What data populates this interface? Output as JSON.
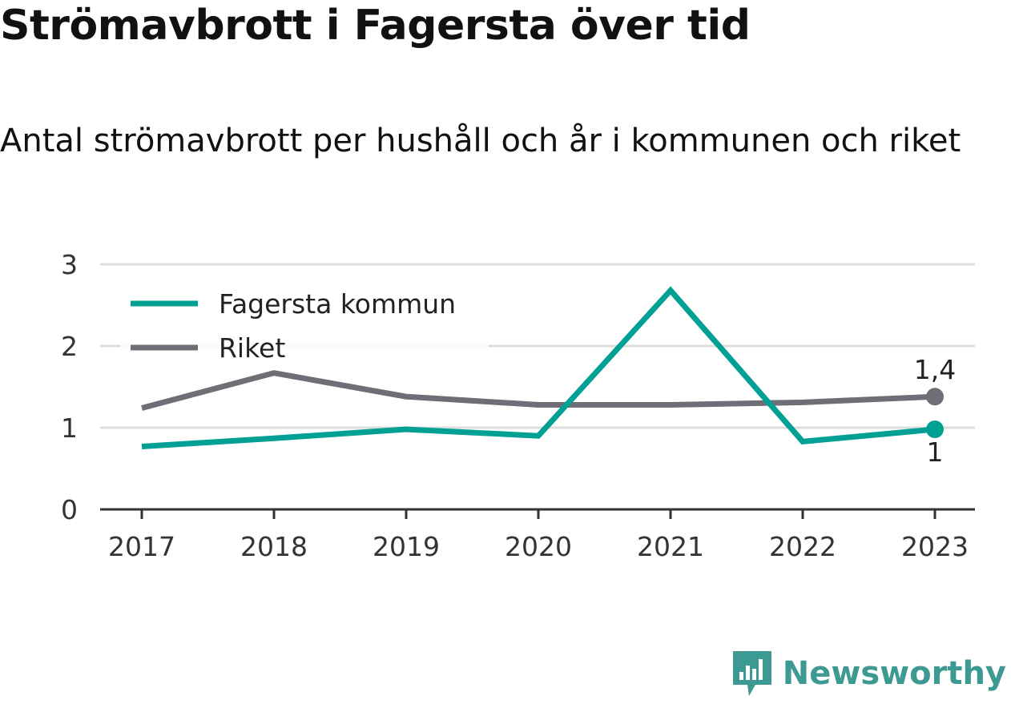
{
  "chart_data": {
    "type": "line",
    "title": "Strömavbrott i Fagersta över tid",
    "subtitle": "Antal strömavbrott per hushåll och år i kommunen och riket",
    "x": [
      "2017",
      "2018",
      "2019",
      "2020",
      "2021",
      "2022",
      "2023"
    ],
    "ylim": [
      0,
      3
    ],
    "yticks": [
      "0",
      "1",
      "2",
      "3"
    ],
    "grid": true,
    "legend_position": "top-left",
    "series": [
      {
        "name": "Fagersta kommun",
        "color": "#00a095",
        "values": [
          0.77,
          0.87,
          0.98,
          0.9,
          2.68,
          0.83,
          0.98
        ]
      },
      {
        "name": "Riket",
        "color": "#6f6e76",
        "values": [
          1.24,
          1.67,
          1.38,
          1.28,
          1.28,
          1.31,
          1.38
        ]
      }
    ],
    "end_labels": [
      {
        "series": "Riket",
        "text": "1,4"
      },
      {
        "series": "Fagersta kommun",
        "text": "1"
      }
    ]
  },
  "brand": {
    "name": "Newsworthy",
    "color": "#3d9a92",
    "icon": "newsworthy-logo-icon"
  }
}
